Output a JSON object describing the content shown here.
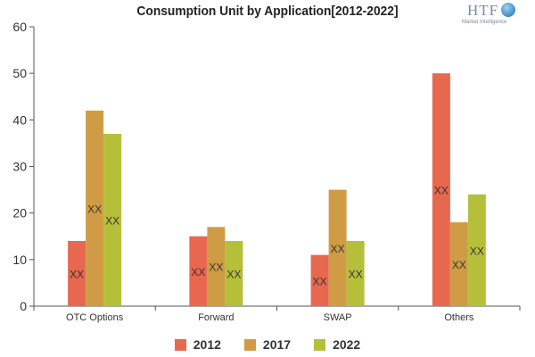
{
  "chart_data": {
    "type": "bar",
    "title": "Consumption Unit by  Application[2012-2022]",
    "categories": [
      "OTC Options",
      "Forward",
      "SWAP",
      "Others"
    ],
    "series": [
      {
        "name": "2012",
        "color": "#e8684f",
        "values": [
          14,
          15,
          11,
          50
        ]
      },
      {
        "name": "2017",
        "color": "#cf9c45",
        "values": [
          42,
          17,
          25,
          18
        ]
      },
      {
        "name": "2022",
        "color": "#b5bf3a",
        "values": [
          37,
          14,
          14,
          24
        ]
      }
    ],
    "bar_label": "XX",
    "ylim": [
      0,
      60
    ],
    "yticks": [
      0,
      10,
      20,
      30,
      40,
      50,
      60
    ],
    "xlabel": "",
    "ylabel": "",
    "grid": false,
    "legend_position": "bottom"
  },
  "logo": {
    "text": "HTF",
    "subtext": "Market Intelligence"
  }
}
